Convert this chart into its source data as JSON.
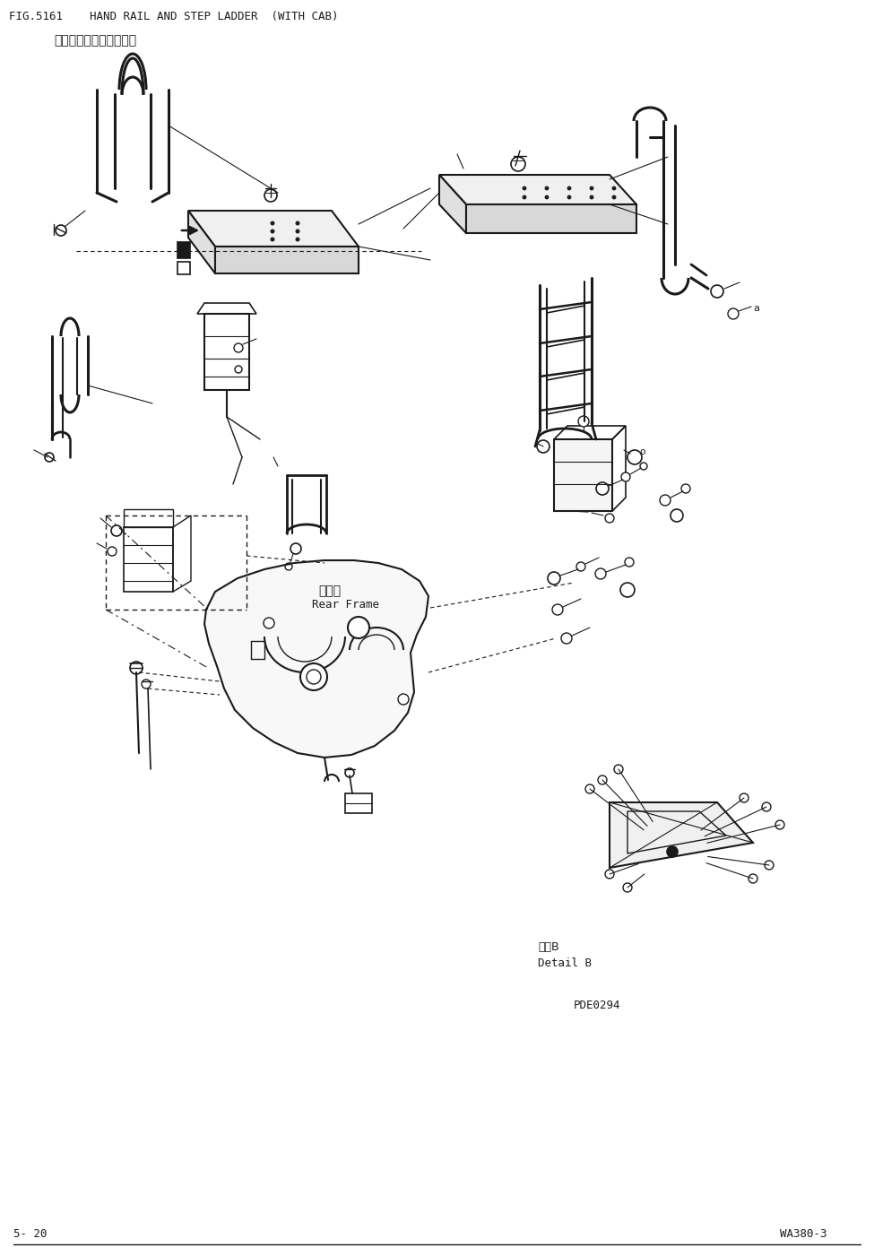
{
  "title_line1": "FIG.5161    HAND RAIL AND STEP LADDER  (WITH CAB)",
  "title_line2": "扶手和梯子（带驾驶室）",
  "label_rear_frame_cn": "后车架",
  "label_rear_frame_en": "Rear Frame",
  "label_detail_cn": "详细B",
  "label_detail_en": "Detail B",
  "label_pde": "PDE0294",
  "page_left": "5- 20",
  "page_right": "WA380-3",
  "bg_color": "#ffffff",
  "line_color": "#1a1a1a",
  "fig_width": 9.75,
  "fig_height": 14.01
}
